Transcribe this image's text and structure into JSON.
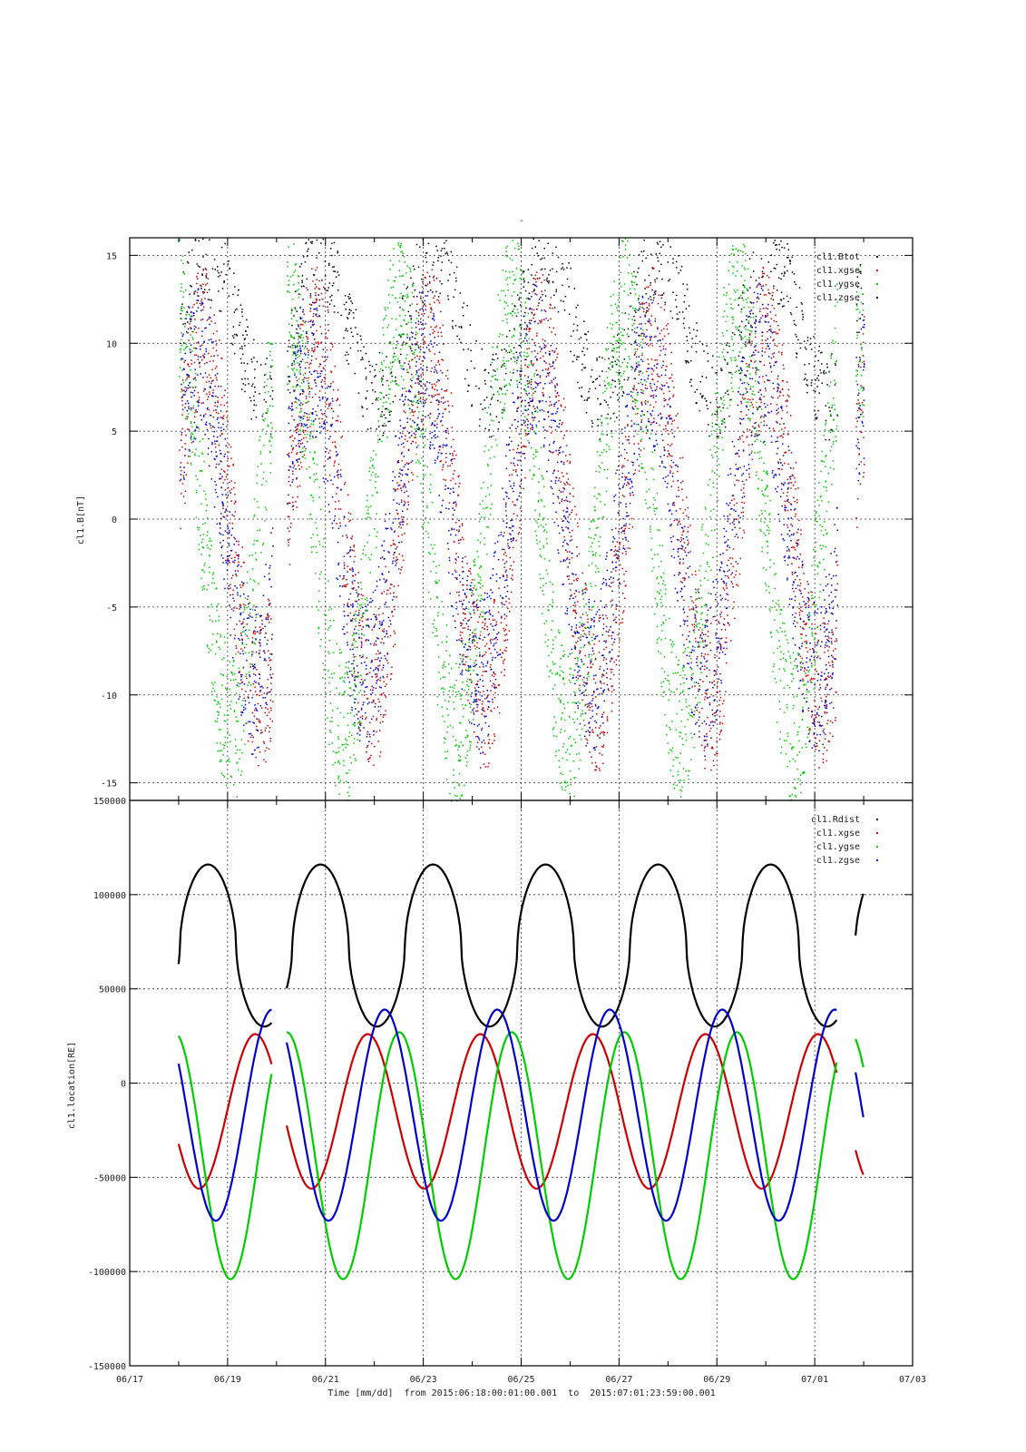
{
  "chart_data": [
    {
      "type": "scatter",
      "title": "-",
      "ylabel": "cl1.B[nT]",
      "xlim": [
        "2015-06-17",
        "2015-07-03"
      ],
      "ylim": [
        -16,
        16
      ],
      "yticks": [
        15,
        10,
        5,
        0,
        -5,
        -10,
        -15
      ],
      "grid": true,
      "legend_position": "top-right",
      "series": [
        {
          "name": "cl1.Btot",
          "color": "#000000"
        },
        {
          "name": "cl1.xgse",
          "color": "#cc0000"
        },
        {
          "name": "cl1.ygse",
          "color": "#00cc00"
        },
        {
          "name": "cl1.zgse",
          "color": "#0000cc"
        }
      ]
    },
    {
      "type": "line",
      "ylabel": "cl1.location[RE]",
      "xlabel": "Time [mm/dd]  from 2015:06:18:00:01:00.001  to  2015:07:01:23:59:00.001",
      "xlim": [
        "2015-06-17",
        "2015-07-03"
      ],
      "xticks": [
        "06/17",
        "06/19",
        "06/21",
        "06/23",
        "06/25",
        "06/27",
        "06/29",
        "07/01",
        "07/03"
      ],
      "ylim": [
        -150000,
        150000
      ],
      "yticks": [
        "150000",
        "100000",
        "50000",
        "0",
        "-50000",
        "-100000",
        "-150000"
      ],
      "grid": true,
      "legend_position": "top-right",
      "period_days": 2.3,
      "series": [
        {
          "name": "cl1.Rdist",
          "color": "#000000",
          "min": 30000,
          "max": 116000
        },
        {
          "name": "cl1.xgse",
          "color": "#cc0000",
          "min": -56000,
          "max": 26000
        },
        {
          "name": "cl1.ygse",
          "color": "#00cc00",
          "min": -104000,
          "max": 27000
        },
        {
          "name": "cl1.zgse",
          "color": "#0000cc",
          "min": -73000,
          "max": 39000
        }
      ],
      "data_segments": [
        [
          "2015-06-18T00:00",
          "2015-06-19T22:00"
        ],
        [
          "2015-06-20T05:00",
          "2015-07-01T11:00"
        ],
        [
          "2015-07-01T20:00",
          "2015-07-02T00:00"
        ]
      ]
    }
  ]
}
